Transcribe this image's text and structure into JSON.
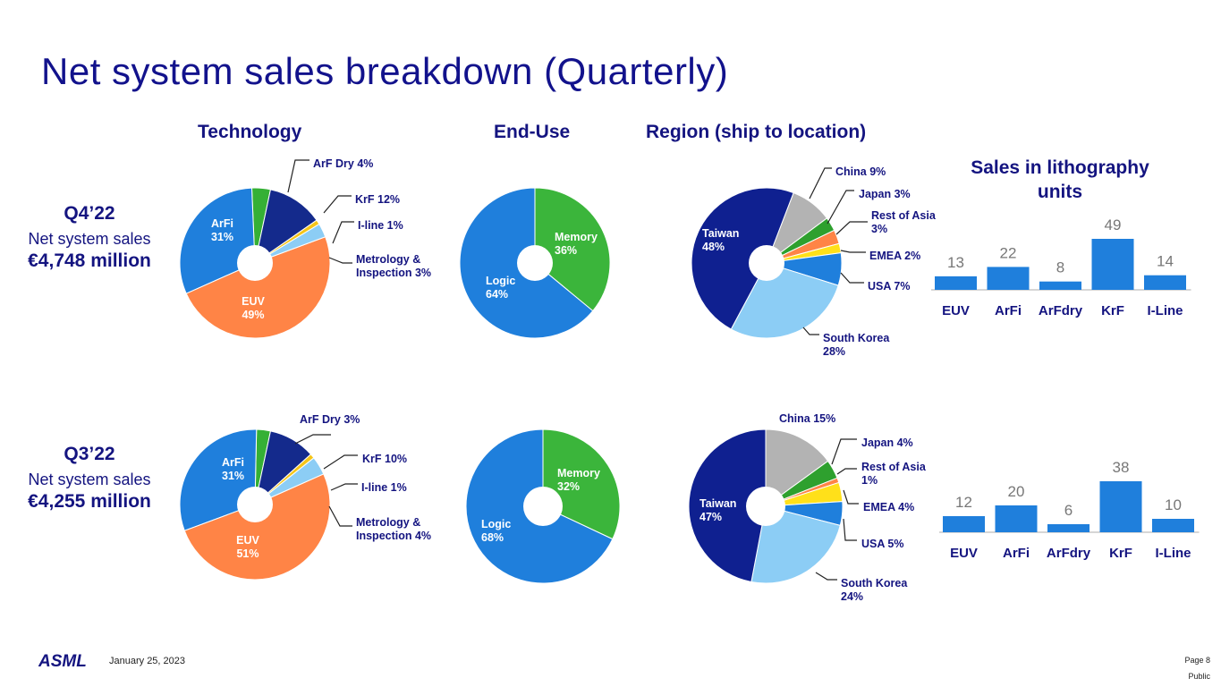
{
  "title": "Net system sales breakdown (Quarterly)",
  "headers": {
    "technology": "Technology",
    "end_use": "End-Use",
    "region": "Region (ship to location)",
    "litho": [
      "Sales in lithography",
      "units"
    ]
  },
  "quarters": [
    {
      "period": "Q4’22",
      "label": "Net system sales",
      "amount": "€4,748 million"
    },
    {
      "period": "Q3’22",
      "label": "Net system sales",
      "amount": "€4,255 million"
    }
  ],
  "footer": {
    "logo": "ASML",
    "date": "January 25, 2023",
    "page": "Page 8",
    "classification": "Public"
  },
  "colors": {
    "euv": "#ff8446",
    "arfi": "#1f7fdc",
    "arfdry": "#35b035",
    "krf": "#142a8c",
    "iline": "#f5c518",
    "metrology": "#8ccdf5",
    "memory": "#3bb53b",
    "logic": "#1f7fdc",
    "taiwan": "#0f2090",
    "china": "#b3b3b3",
    "japan": "#2ea02e",
    "rest_of_asia": "#ff8446",
    "emea": "#ffe01a",
    "usa": "#1f7fdc",
    "south_korea": "#8ccdf5",
    "bar": "#1f7fdc",
    "title": "#12128c"
  },
  "chart_data": [
    {
      "id": "tech-q4",
      "type": "pie",
      "title": "Technology",
      "period": "Q4’22",
      "start_angle": 12,
      "direction": "ccw",
      "slices": [
        {
          "key": "arfdry",
          "name": "ArF Dry",
          "value": 4,
          "label": "ArF Dry 4%",
          "leader": true
        },
        {
          "key": "arfi",
          "name": "ArFi",
          "value": 31,
          "label": "ArFi 31%",
          "leader": false
        },
        {
          "key": "euv",
          "name": "EUV",
          "value": 49,
          "label": "EUV 49%",
          "leader": false
        },
        {
          "key": "metrology",
          "name": "Metrology & Inspection",
          "value": 3,
          "label": "Metrology & Inspection 3%",
          "leader": true
        },
        {
          "key": "iline",
          "name": "I-line",
          "value": 1,
          "label": "I-line 1%",
          "leader": true
        },
        {
          "key": "krf",
          "name": "KrF",
          "value": 12,
          "label": "KrF 12%",
          "leader": true
        }
      ]
    },
    {
      "id": "enduse-q4",
      "type": "pie",
      "title": "End-Use",
      "period": "Q4’22",
      "start_angle": 0,
      "direction": "cw",
      "slices": [
        {
          "key": "memory",
          "name": "Memory",
          "value": 36,
          "label": "Memory 36%",
          "leader": false
        },
        {
          "key": "logic",
          "name": "Logic",
          "value": 64,
          "label": "Logic 64%",
          "leader": false
        }
      ]
    },
    {
      "id": "region-q4",
      "type": "pie",
      "title": "Region (ship to location)",
      "period": "Q4’22",
      "start_angle": 21,
      "direction": "cw",
      "slices": [
        {
          "key": "china",
          "name": "China",
          "value": 9,
          "label": "China 9%",
          "leader": true
        },
        {
          "key": "japan",
          "name": "Japan",
          "value": 3,
          "label": "Japan 3%",
          "leader": true
        },
        {
          "key": "rest_of_asia",
          "name": "Rest of Asia",
          "value": 3,
          "label": "Rest of Asia 3%",
          "leader": true
        },
        {
          "key": "emea",
          "name": "EMEA",
          "value": 2,
          "label": "EMEA 2%",
          "leader": true
        },
        {
          "key": "usa",
          "name": "USA",
          "value": 7,
          "label": "USA 7%",
          "leader": true
        },
        {
          "key": "south_korea",
          "name": "South Korea",
          "value": 28,
          "label": "South Korea 28%",
          "leader": true
        },
        {
          "key": "taiwan",
          "name": "Taiwan",
          "value": 48,
          "label": "Taiwan 48%",
          "leader": false
        }
      ]
    },
    {
      "id": "tech-q3",
      "type": "pie",
      "title": "Technology",
      "period": "Q3’22",
      "start_angle": 12,
      "direction": "ccw",
      "slices": [
        {
          "key": "arfdry",
          "name": "ArF Dry",
          "value": 3,
          "label": "ArF Dry 3%",
          "leader": true
        },
        {
          "key": "arfi",
          "name": "ArFi",
          "value": 31,
          "label": "ArFi 31%",
          "leader": false
        },
        {
          "key": "euv",
          "name": "EUV",
          "value": 51,
          "label": "EUV 51%",
          "leader": false
        },
        {
          "key": "metrology",
          "name": "Metrology & Inspection",
          "value": 4,
          "label": "Metrology & Inspection 4%",
          "leader": true
        },
        {
          "key": "iline",
          "name": "I-line",
          "value": 1,
          "label": "I-line 1%",
          "leader": true
        },
        {
          "key": "krf",
          "name": "KrF",
          "value": 10,
          "label": "KrF 10%",
          "leader": true
        }
      ]
    },
    {
      "id": "enduse-q3",
      "type": "pie",
      "title": "End-Use",
      "period": "Q3’22",
      "start_angle": 0,
      "direction": "cw",
      "slices": [
        {
          "key": "memory",
          "name": "Memory",
          "value": 32,
          "label": "Memory 32%",
          "leader": false
        },
        {
          "key": "logic",
          "name": "Logic",
          "value": 68,
          "label": "Logic 68%",
          "leader": false
        }
      ]
    },
    {
      "id": "region-q3",
      "type": "pie",
      "title": "Region (ship to location)",
      "period": "Q3’22",
      "start_angle": 0,
      "direction": "cw",
      "slices": [
        {
          "key": "china",
          "name": "China",
          "value": 15,
          "label": "China 15%",
          "leader": false
        },
        {
          "key": "japan",
          "name": "Japan",
          "value": 4,
          "label": "Japan 4%",
          "leader": true
        },
        {
          "key": "rest_of_asia",
          "name": "Rest of Asia",
          "value": 1,
          "label": "Rest of Asia 1%",
          "leader": true
        },
        {
          "key": "emea",
          "name": "EMEA",
          "value": 4,
          "label": "EMEA 4%",
          "leader": true
        },
        {
          "key": "usa",
          "name": "USA",
          "value": 5,
          "label": "USA 5%",
          "leader": true
        },
        {
          "key": "south_korea",
          "name": "South Korea",
          "value": 24,
          "label": "South Korea 24%",
          "leader": true
        },
        {
          "key": "taiwan",
          "name": "Taiwan",
          "value": 47,
          "label": "Taiwan 47%",
          "leader": false
        }
      ]
    },
    {
      "id": "units-q4",
      "type": "bar",
      "title": "Sales in lithography units",
      "period": "Q4’22",
      "categories": [
        "EUV",
        "ArFi",
        "ArFdry",
        "KrF",
        "I-Line"
      ],
      "values": [
        13,
        22,
        8,
        49,
        14
      ]
    },
    {
      "id": "units-q3",
      "type": "bar",
      "title": "Sales in lithography units",
      "period": "Q3’22",
      "categories": [
        "EUV",
        "ArFi",
        "ArFdry",
        "KrF",
        "I-Line"
      ],
      "values": [
        12,
        20,
        6,
        38,
        10
      ]
    }
  ]
}
